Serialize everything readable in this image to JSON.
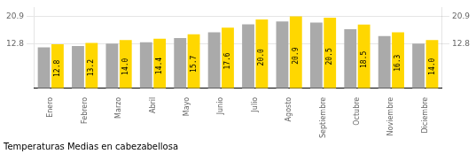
{
  "chart_data": {
    "type": "bar",
    "title": "Temperaturas Medias en cabezabellosa",
    "categories": [
      "Enero",
      "Febrero",
      "Marzo",
      "Abril",
      "Mayo",
      "Junio",
      "Julio",
      "Agosto",
      "Septiembre",
      "Octubre",
      "Noviembre",
      "Diciembre"
    ],
    "series": [
      {
        "color": "#AAAAAA",
        "values": [
          11.9,
          12.3,
          13.0,
          13.4,
          14.6,
          16.3,
          18.6,
          19.4,
          19.1,
          17.2,
          15.2,
          13.0
        ]
      },
      {
        "color": "#FFD700",
        "values": [
          12.8,
          13.2,
          14.0,
          14.4,
          15.7,
          17.6,
          20.0,
          20.9,
          20.5,
          18.5,
          16.3,
          14.0
        ],
        "value_labels": [
          "12.8",
          "13.2",
          "14.0",
          "14.4",
          "15.7",
          "17.6",
          "20.0",
          "20.9",
          "20.5",
          "18.5",
          "16.3",
          "14.0"
        ],
        "data_labels": true
      }
    ],
    "ylim": [
      0,
      23.5
    ],
    "yticks": [
      12.8,
      20.9
    ],
    "y2lim": [
      0,
      23.5
    ],
    "y2ticks": [
      12.8,
      20.9
    ],
    "grid": true
  }
}
